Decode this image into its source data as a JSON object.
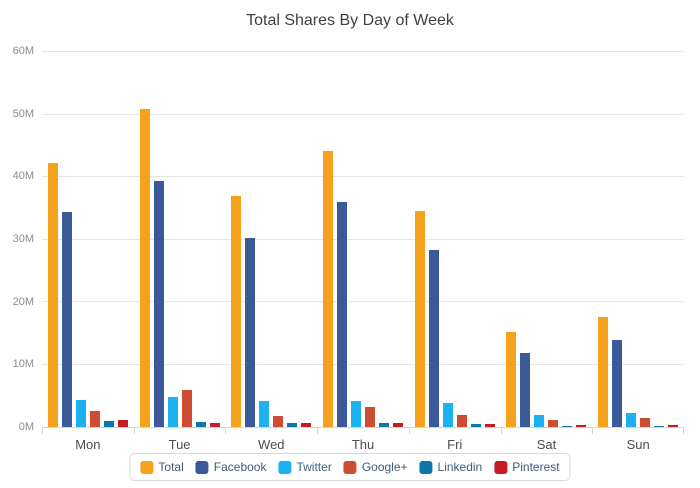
{
  "chart_data": {
    "type": "bar",
    "title": "Total Shares By Day of Week",
    "categories": [
      "Mon",
      "Tue",
      "Wed",
      "Thu",
      "Fri",
      "Sat",
      "Sun"
    ],
    "series": [
      {
        "name": "Total",
        "color": "#F5A11C",
        "values": [
          42.2,
          50.9,
          37.0,
          44.2,
          34.6,
          15.2,
          17.6
        ]
      },
      {
        "name": "Facebook",
        "color": "#3B5998",
        "values": [
          34.4,
          39.4,
          30.3,
          36.0,
          28.4,
          11.8,
          13.9
        ]
      },
      {
        "name": "Twitter",
        "color": "#1CB2F2",
        "values": [
          4.4,
          4.8,
          4.1,
          4.1,
          3.8,
          2.0,
          2.3
        ]
      },
      {
        "name": "Google+",
        "color": "#CC4D33",
        "values": [
          2.5,
          5.9,
          1.7,
          3.2,
          1.9,
          1.2,
          1.4
        ]
      },
      {
        "name": "Linkedin",
        "color": "#0E76A8",
        "values": [
          0.9,
          0.8,
          0.6,
          0.7,
          0.5,
          0.1,
          0.1
        ]
      },
      {
        "name": "Pinterest",
        "color": "#C41D25",
        "values": [
          1.2,
          0.7,
          0.6,
          0.6,
          0.5,
          0.35,
          0.3
        ]
      }
    ],
    "xlabel": "",
    "ylabel": "",
    "ylim": [
      0,
      60
    ],
    "ytick_interval": 10,
    "ytick_labels": [
      "0M",
      "10M",
      "20M",
      "30M",
      "40M",
      "50M",
      "60M"
    ],
    "grid": true,
    "legend_position": "bottom",
    "style": {
      "background": "#FFFFFF",
      "gridline_color": "#E6E6E6",
      "axis_line_color": "#CCD6EB",
      "title_color": "#404040",
      "y_label_color": "#8C8C8C",
      "x_label_color": "#4D4D4D",
      "legend_text_color": "#3E5C7E",
      "legend_border_color": "#D8D8D8"
    }
  }
}
